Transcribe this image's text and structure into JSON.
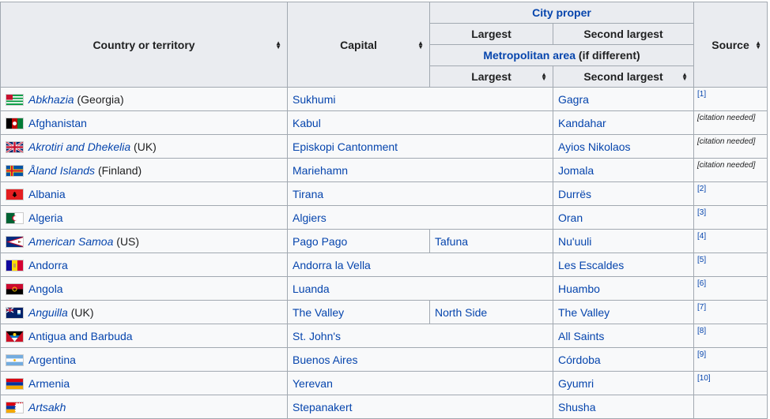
{
  "headers": {
    "country": "Country or territory",
    "capital": "Capital",
    "city_proper": "City proper",
    "largest": "Largest",
    "second_largest": "Second largest",
    "metropolitan_area": "Metropolitan area",
    "if_different": " (if different)",
    "largest_metro": "Largest",
    "second_largest_metro": "Second largest",
    "source": "Source"
  },
  "rows": [
    {
      "country": "Abkhazia",
      "suffix": " (Georgia)",
      "italic": true,
      "capital": "Sukhumi",
      "largest": "",
      "second": "Gagra",
      "source": "[1]",
      "flag": "abkhazia-flag"
    },
    {
      "country": "Afghanistan",
      "suffix": "",
      "italic": false,
      "capital": "Kabul",
      "largest": "",
      "second": "Kandahar",
      "source": "[citation needed]",
      "flag": "afghanistan-flag"
    },
    {
      "country": "Akrotiri and Dhekelia",
      "suffix": " (UK)",
      "italic": true,
      "capital": "Episkopi Cantonment",
      "largest": "",
      "second": "Ayios Nikolaos",
      "source": "[citation needed]",
      "flag": "uk-flag"
    },
    {
      "country": "Åland Islands",
      "suffix": " (Finland)",
      "italic": true,
      "capital": "Mariehamn",
      "largest": "",
      "second": "Jomala",
      "source": "[citation needed]",
      "flag": "aland-flag"
    },
    {
      "country": "Albania",
      "suffix": "",
      "italic": false,
      "capital": "Tirana",
      "largest": "",
      "second": "Durrës",
      "source": "[2]",
      "flag": "albania-flag"
    },
    {
      "country": "Algeria",
      "suffix": "",
      "italic": false,
      "capital": "Algiers",
      "largest": "",
      "second": "Oran",
      "source": "[3]",
      "flag": "algeria-flag"
    },
    {
      "country": "American Samoa",
      "suffix": " (US)",
      "italic": true,
      "capital": "Pago Pago",
      "largest": "Tafuna",
      "second": "Nu'uuli",
      "source": "[4]",
      "flag": "american-samoa-flag"
    },
    {
      "country": "Andorra",
      "suffix": "",
      "italic": false,
      "capital": "Andorra la Vella",
      "largest": "",
      "second": "Les Escaldes",
      "source": "[5]",
      "flag": "andorra-flag"
    },
    {
      "country": "Angola",
      "suffix": "",
      "italic": false,
      "capital": "Luanda",
      "largest": "",
      "second": "Huambo",
      "source": "[6]",
      "flag": "angola-flag"
    },
    {
      "country": "Anguilla",
      "suffix": " (UK)",
      "italic": true,
      "capital": "The Valley",
      "largest": "North Side",
      "second": "The Valley",
      "source": "[7]",
      "flag": "anguilla-flag"
    },
    {
      "country": "Antigua and Barbuda",
      "suffix": "",
      "italic": false,
      "capital": "St. John's",
      "largest": "",
      "second": "All Saints",
      "source": "[8]",
      "flag": "antigua-flag"
    },
    {
      "country": "Argentina",
      "suffix": "",
      "italic": false,
      "capital": "Buenos Aires",
      "largest": "",
      "second": "Córdoba",
      "source": "[9]",
      "flag": "argentina-flag"
    },
    {
      "country": "Armenia",
      "suffix": "",
      "italic": false,
      "capital": "Yerevan",
      "largest": "",
      "second": "Gyumri",
      "source": "[10]",
      "flag": "armenia-flag"
    },
    {
      "country": "Artsakh",
      "suffix": "",
      "italic": true,
      "capital": "Stepanakert",
      "largest": "",
      "second": "Shusha",
      "source": "",
      "flag": "artsakh-flag"
    }
  ]
}
